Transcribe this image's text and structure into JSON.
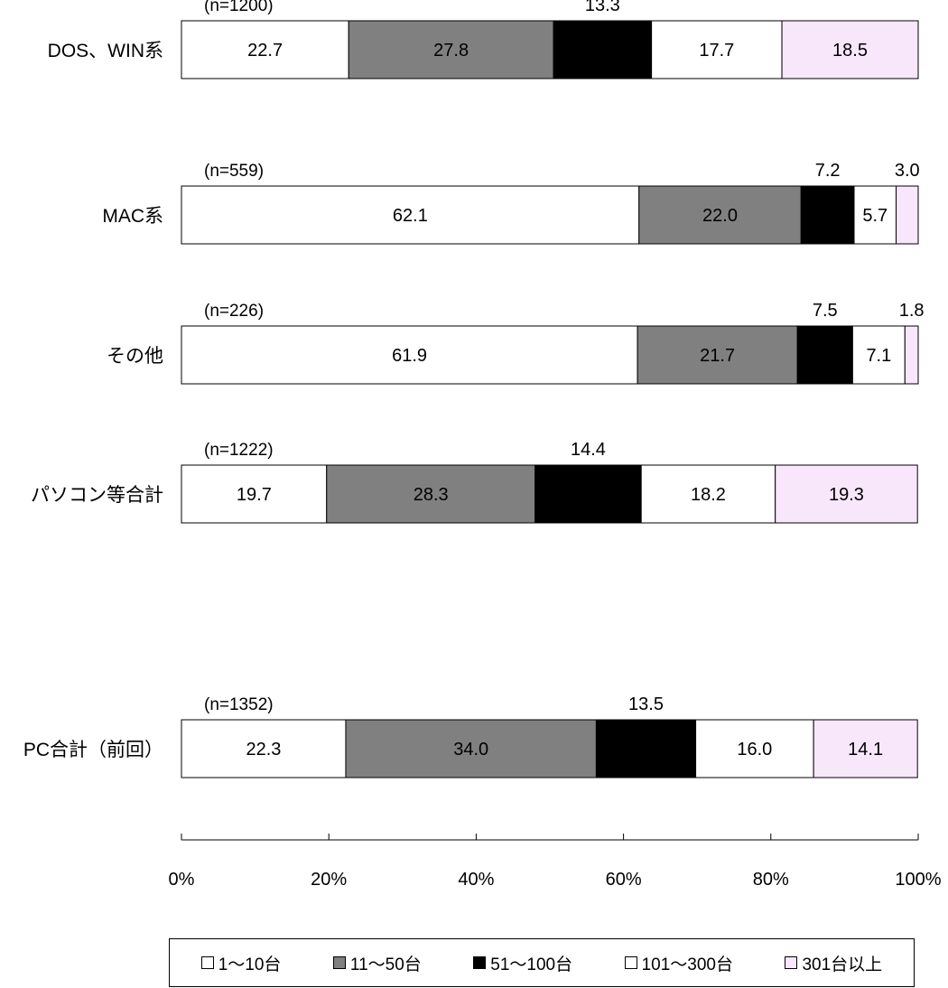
{
  "chart_data": {
    "type": "bar",
    "orientation": "horizontal-stacked-100",
    "title": "",
    "xlabel": "",
    "ylabel": "",
    "xlim": [
      0,
      100
    ],
    "x_ticks": [
      "0%",
      "20%",
      "40%",
      "60%",
      "80%",
      "100%"
    ],
    "grid": false,
    "legend_position": "bottom",
    "categories": [
      "DOS、WIN系",
      "MAC系",
      "その他",
      "パソコン等合計",
      "PC合計（前回）"
    ],
    "sample_sizes": [
      "(n=1200)",
      "(n=559)",
      "(n=226)",
      "(n=1222)",
      "(n=1352)"
    ],
    "series": [
      {
        "name": "1～10台",
        "color": "#ffffff",
        "values": [
          22.7,
          62.1,
          61.9,
          19.7,
          22.3
        ]
      },
      {
        "name": "11～50台",
        "color": "#808080",
        "values": [
          27.8,
          22.0,
          21.7,
          28.3,
          34.0
        ]
      },
      {
        "name": "51～100台",
        "color": "#000000",
        "values": [
          13.3,
          7.2,
          7.5,
          14.4,
          13.5
        ]
      },
      {
        "name": "101～300台",
        "color": "#ffffff",
        "values": [
          17.7,
          5.7,
          7.1,
          18.2,
          16.0
        ]
      },
      {
        "name": "301台以上",
        "color": "#f8e6fb",
        "values": [
          18.5,
          3.0,
          1.8,
          19.3,
          14.1
        ]
      }
    ],
    "label_colors": [
      "#000000",
      "#000000",
      "#ffffff",
      "#000000",
      "#000000"
    ]
  }
}
